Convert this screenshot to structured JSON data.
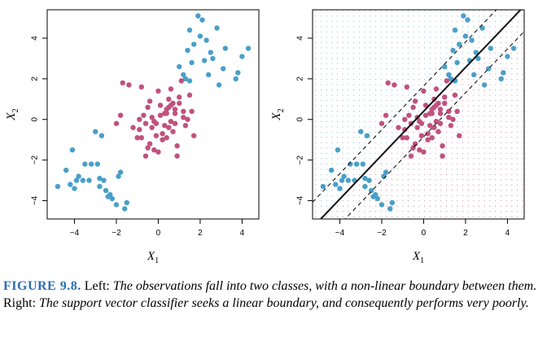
{
  "colors": {
    "class_a": "#4a9fc8",
    "class_b": "#c0527e",
    "boundary": "#111111"
  },
  "caption": {
    "label": "FIGURE 9.8.",
    "part1": " Left: ",
    "part2": "The observations fall into two classes, with a non-linear boundary between them.",
    "part3": " Right: ",
    "part4": "The support vector classifier seeks a linear boundary, and consequently performs very poorly."
  },
  "chart_data": [
    {
      "type": "scatter",
      "panel": "left",
      "xlabel": "X",
      "xlabel_sub": "1",
      "ylabel": "X",
      "ylabel_sub": "2",
      "xlim": [
        -5.3,
        4.8
      ],
      "ylim": [
        -4.9,
        5.4
      ],
      "xticks": [
        -4,
        -2,
        0,
        2,
        4
      ],
      "yticks": [
        -4,
        -2,
        0,
        2,
        4
      ],
      "series": [
        {
          "class": "blue",
          "color": "#4a9fc8",
          "x": [
            1.9,
            2.1,
            1.5,
            2.8,
            2.3,
            1.7,
            2.0,
            3.2,
            1.4,
            2.5,
            4.3,
            4.0,
            3.8,
            3.1,
            3.7,
            2.6,
            2.2,
            1.6,
            1.2,
            1.0,
            1.5,
            2.9,
            2.4,
            1.3,
            -4.1,
            -4.4,
            -3.5,
            -3.2,
            -2.9,
            -3.8,
            -4.8,
            -3.3,
            -2.8,
            -2.5,
            -2.6,
            -2.4,
            -2.2,
            -1.9,
            -1.8,
            -1.5,
            -1.6,
            -2.7,
            -3.0,
            -3.9,
            -4.2,
            -4.0,
            -3.6,
            -2.3,
            -2.0,
            -2.8
          ],
          "y": [
            5.1,
            4.9,
            4.4,
            4.5,
            3.9,
            3.7,
            4.1,
            3.5,
            3.4,
            3.3,
            3.5,
            3.1,
            2.3,
            2.5,
            2.0,
            3.0,
            2.9,
            2.8,
            2.2,
            2.6,
            1.9,
            1.7,
            2.2,
            2.0,
            -1.5,
            -2.5,
            -2.2,
            -2.2,
            -2.2,
            -2.8,
            -3.3,
            -3.0,
            -3.3,
            -3.5,
            -3.0,
            -3.8,
            -3.9,
            -2.8,
            -2.6,
            -4.1,
            -4.4,
            -0.8,
            -0.6,
            -3.0,
            -3.2,
            -3.4,
            -3.0,
            -3.7,
            -4.2,
            -2.9
          ]
        },
        {
          "class": "magenta",
          "color": "#c0527e",
          "x": [
            0.1,
            -0.3,
            0.4,
            0.6,
            0.8,
            1.0,
            1.2,
            0.5,
            -0.5,
            -0.7,
            -0.9,
            -0.1,
            0.3,
            0.7,
            1.4,
            1.6,
            0.9,
            0.2,
            -0.2,
            -0.6,
            -1.0,
            -1.2,
            -0.4,
            0.0,
            0.6,
            1.1,
            1.5,
            0.8,
            0.4,
            -0.8,
            -1.4,
            -1.7,
            -0.2,
            0.1,
            0.5,
            1.3,
            0.7,
            -0.4,
            -0.1,
            0.9,
            1.7,
            0.3,
            -0.9,
            -0.3,
            0.6,
            1.0,
            0.2,
            -0.6,
            0.5,
            0.8,
            1.2,
            -2.0,
            -1.8,
            -0.8,
            0.4,
            0.0,
            -0.5
          ],
          "y": [
            0.2,
            -0.4,
            0.5,
            -0.1,
            0.3,
            0.8,
            0.1,
            1.0,
            0.6,
            0.2,
            -0.5,
            -0.8,
            -0.3,
            -0.6,
            0.0,
            0.4,
            -1.3,
            -1.0,
            -1.5,
            -1.8,
            -0.9,
            -0.4,
            0.9,
            1.4,
            1.5,
            1.9,
            1.2,
            -0.2,
            0.3,
            1.6,
            1.7,
            1.8,
            -0.1,
            0.7,
            -0.4,
            -0.3,
            0.8,
            -1.2,
            -0.2,
            -1.8,
            -0.8,
            0.3,
            0.0,
            0.1,
            0.7,
            1.1,
            -0.7,
            -0.2,
            0.6,
            0.5,
            0.4,
            -0.2,
            0.2,
            -0.9,
            -0.9,
            -1.6,
            -1.4
          ]
        }
      ]
    },
    {
      "type": "scatter",
      "panel": "right",
      "xlabel": "X",
      "xlabel_sub": "1",
      "ylabel": "X",
      "ylabel_sub": "2",
      "xlim": [
        -5.3,
        4.8
      ],
      "ylim": [
        -4.9,
        5.4
      ],
      "xticks": [
        -4,
        -2,
        0,
        2,
        4
      ],
      "yticks": [
        -4,
        -2,
        0,
        2,
        4
      ],
      "decision_boundary": {
        "slope": 1.08,
        "intercept": 0.4,
        "margin_offset": 1.25
      },
      "grid_background": true,
      "series_ref": "same observations as left panel"
    }
  ]
}
